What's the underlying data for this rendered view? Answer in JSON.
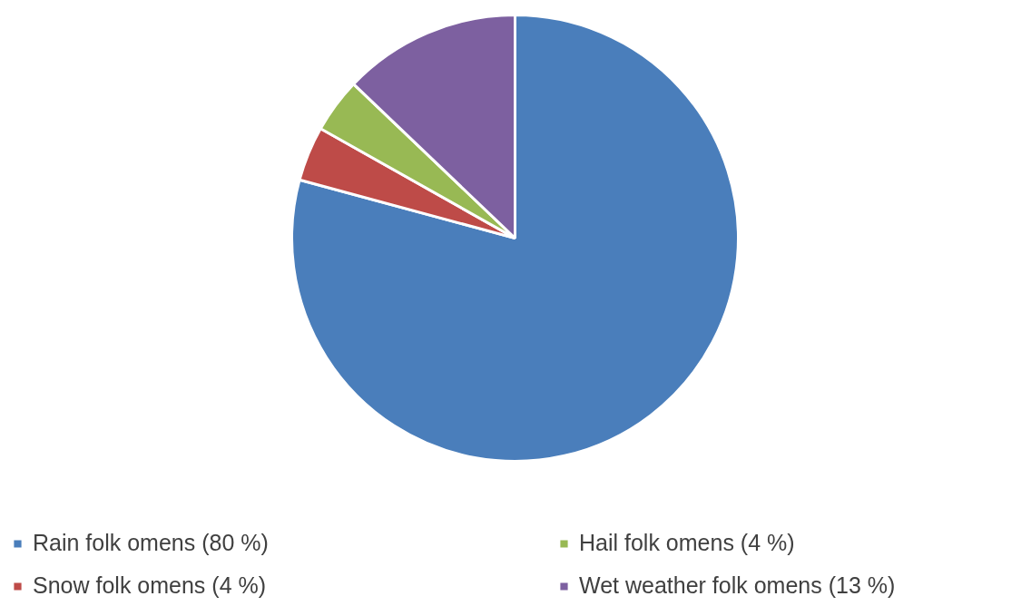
{
  "chart_data": {
    "type": "pie",
    "categories": [
      "Rain folk omens (80 %)",
      "Snow folk omens (4 %)",
      "Hail folk omens (4 %)",
      "Wet weather folk omens (13 %)"
    ],
    "values": [
      80,
      4,
      4,
      13
    ],
    "colors": [
      "#4a7ebb",
      "#be4b48",
      "#98b954",
      "#7d60a0"
    ],
    "legend": "bottom"
  }
}
